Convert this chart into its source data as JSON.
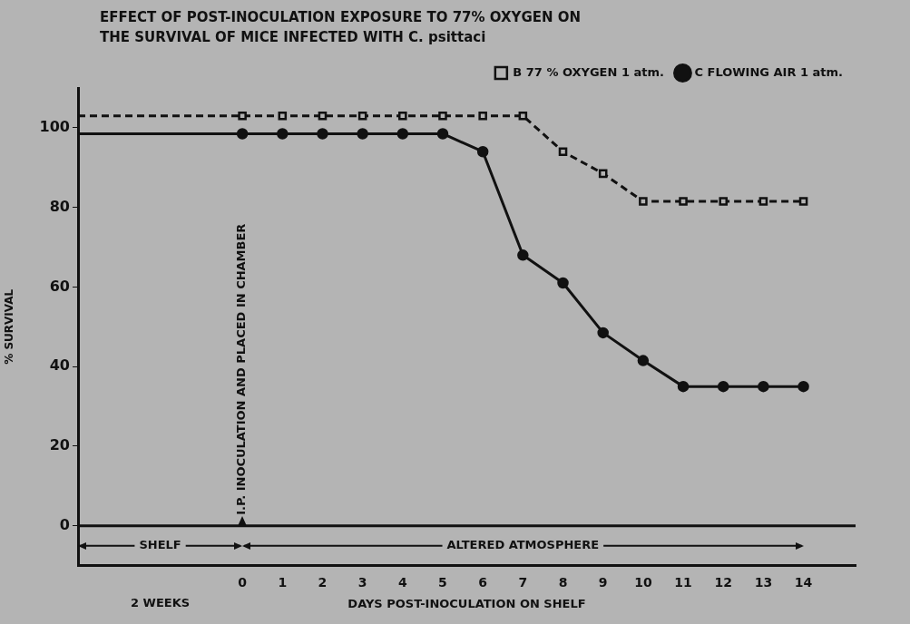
{
  "chart_data": {
    "type": "line",
    "title": "EFFECT OF POST-INOCULATION EXPOSURE TO 77% OXYGEN ON THE SURVIVAL OF MICE INFECTED WITH C. psittaci",
    "xlabel": "DAYS POST-INOCULATION ON SHELF",
    "ylabel": "% SURVIVAL",
    "x": [
      -4.1,
      0,
      1,
      2,
      3,
      4,
      5,
      6,
      7,
      8,
      9,
      10,
      11,
      12,
      13,
      14
    ],
    "series": [
      {
        "name": "B 77 % OXYGEN 1 atm.",
        "color": "#111111",
        "marker": "square",
        "line_style": "dashed",
        "values": [
          103,
          103,
          103,
          103,
          103,
          103,
          103,
          103,
          103,
          94,
          88.5,
          81.5,
          81.5,
          81.5,
          81.5,
          81.5
        ]
      },
      {
        "name": "C FLOWING AIR 1 atm.",
        "color": "#111111",
        "marker": "circle",
        "line_style": "solid",
        "values": [
          98.5,
          98.5,
          98.5,
          98.5,
          98.5,
          98.5,
          98.5,
          94,
          68,
          61,
          48.5,
          41.5,
          35,
          35,
          35,
          35
        ]
      }
    ],
    "xlim": [
      -4.1,
      15.3
    ],
    "ylim": [
      -10,
      110
    ],
    "xticks": [
      0,
      1,
      2,
      3,
      4,
      5,
      6,
      7,
      8,
      9,
      10,
      11,
      12,
      13,
      14
    ],
    "yticks": [
      0,
      20,
      40,
      60,
      80,
      100
    ],
    "ref_lines": [
      {
        "axis": "y",
        "value": 0,
        "color": "#111111"
      }
    ],
    "annotations": [
      {
        "text": "I.P. INOCULATION AND PLACED IN CHAMBER",
        "x": 0,
        "y": 0
      },
      "SHELF",
      "ALTERED ATMOSPHERE",
      "2 WEEKS"
    ],
    "legend": "top right",
    "grid": false
  }
}
